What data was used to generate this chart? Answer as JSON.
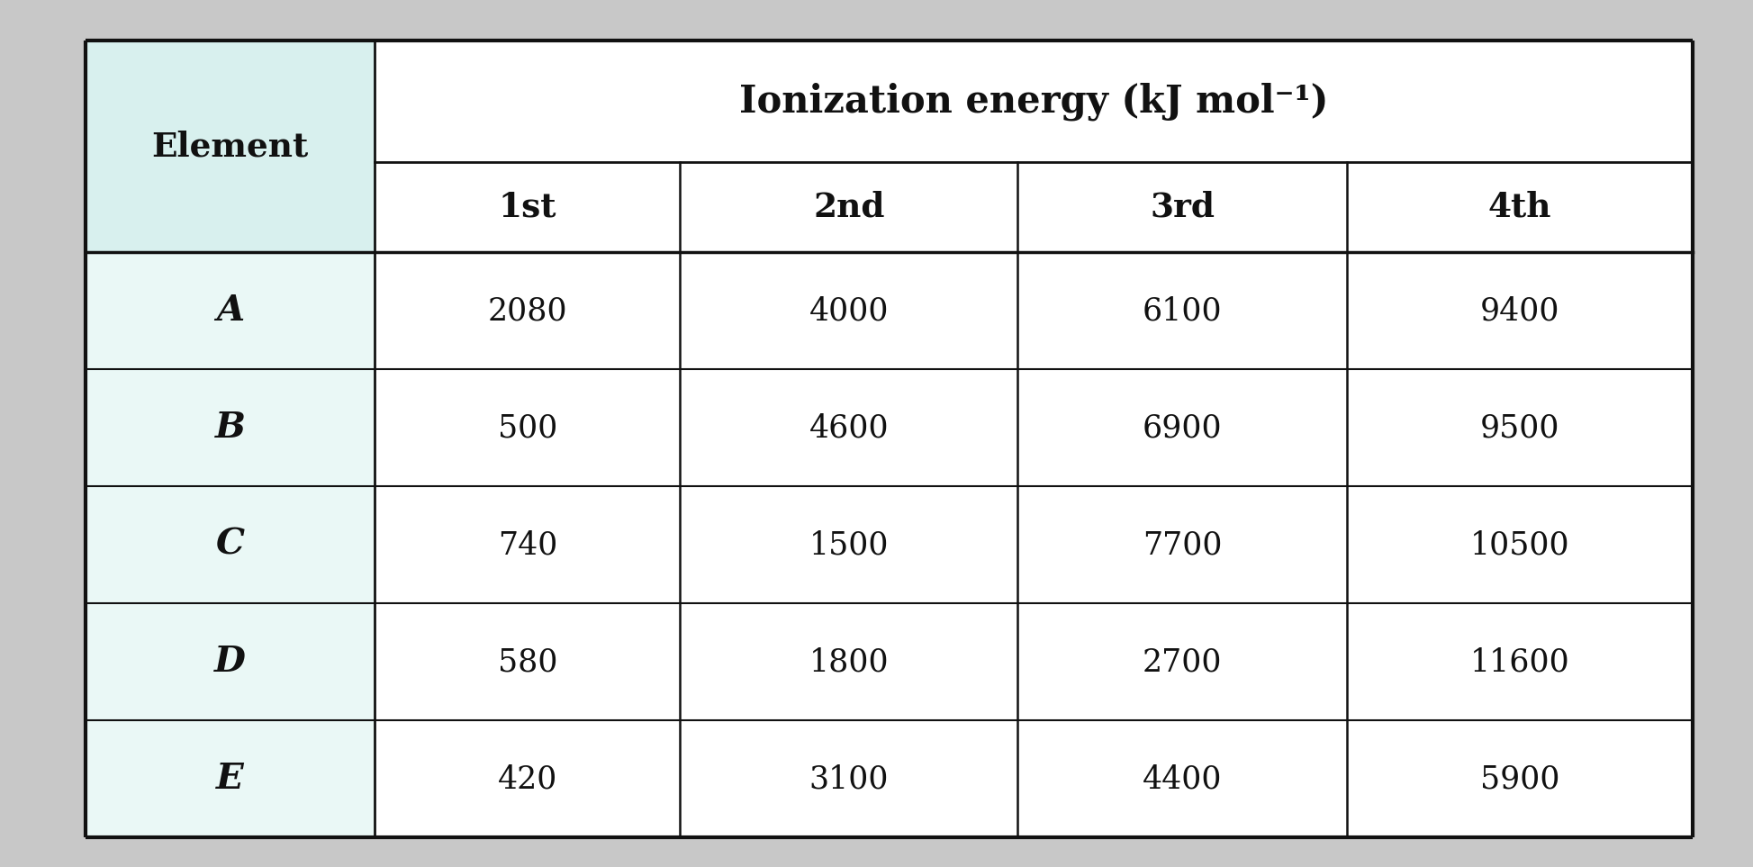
{
  "title": "Ionization energy (kJ mol⁻¹)",
  "col_headers": [
    "1st",
    "2nd",
    "3rd",
    "4th"
  ],
  "row_labels": [
    "A",
    "B",
    "C",
    "D",
    "E"
  ],
  "table_data": [
    [
      2080,
      4000,
      6100,
      9400
    ],
    [
      500,
      4600,
      6900,
      9500
    ],
    [
      740,
      1500,
      7700,
      10500
    ],
    [
      580,
      1800,
      2700,
      11600
    ],
    [
      420,
      3100,
      4400,
      5900
    ]
  ],
  "element_header": "Element",
  "elem_bg_color": "#d8f0ee",
  "cell_bg": "#ffffff",
  "border_color": "#111111",
  "text_color": "#111111",
  "title_fontsize": 30,
  "header_fontsize": 27,
  "cell_fontsize": 25,
  "element_fontsize": 27,
  "outer_bg": "#c8c8c8"
}
